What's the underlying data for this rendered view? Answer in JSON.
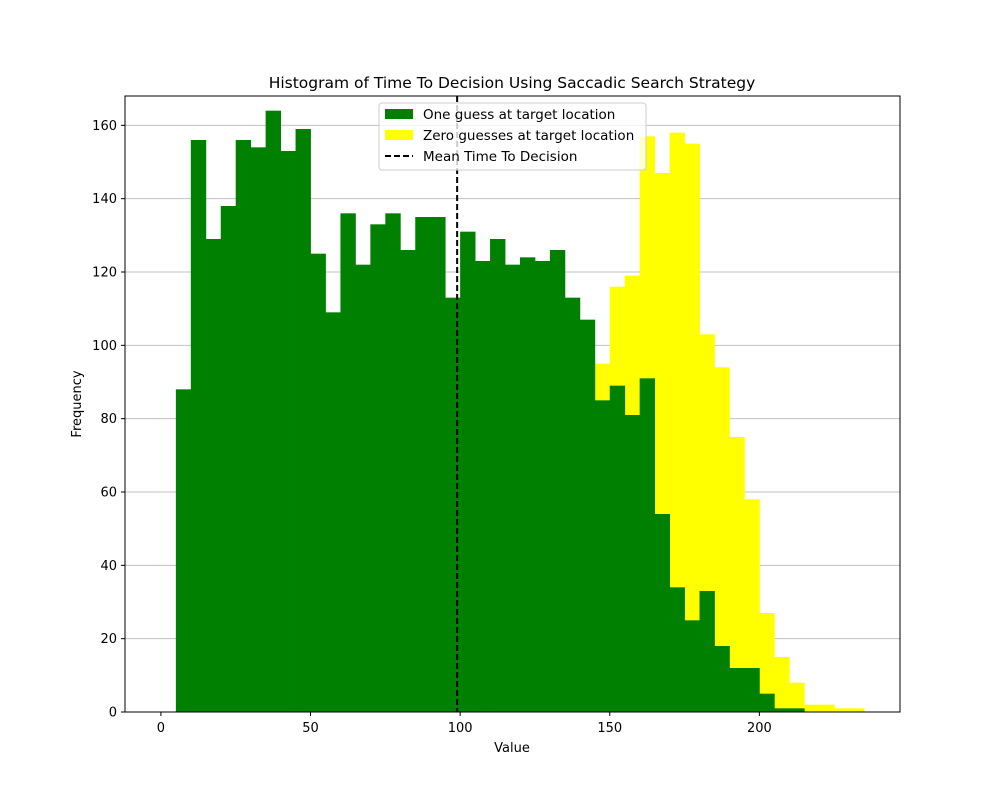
{
  "chart_data": {
    "type": "bar",
    "title": "Histogram of Time To Decision Using Saccadic Search Strategy",
    "xlabel": "Value",
    "ylabel": "Frequency",
    "xlim": [
      -12,
      247
    ],
    "ylim": [
      0,
      168
    ],
    "x_ticks": [
      0,
      50,
      100,
      150,
      200
    ],
    "y_ticks": [
      0,
      20,
      40,
      60,
      80,
      100,
      120,
      140,
      160
    ],
    "grid": "y",
    "legend_position": "top-center",
    "mean_line": {
      "label": "Mean Time To Decision",
      "x": 99,
      "style": "dashed",
      "color": "#000000"
    },
    "series": [
      {
        "name": "Zero guesses at target location",
        "color": "#ffff00",
        "bin_width": 5,
        "bin_starts": [
          145,
          150,
          155,
          160,
          165,
          170,
          175,
          180,
          185,
          190,
          195,
          200,
          205,
          210,
          215,
          220,
          225,
          230
        ],
        "values": [
          95,
          116,
          119,
          157,
          147,
          158,
          155,
          103,
          94,
          75,
          58,
          27,
          15,
          8,
          2,
          2,
          1,
          1
        ]
      },
      {
        "name": "One guess at target location",
        "color": "#008000",
        "bin_width": 5,
        "bin_starts": [
          5,
          10,
          15,
          20,
          25,
          30,
          35,
          40,
          45,
          50,
          55,
          60,
          65,
          70,
          75,
          80,
          85,
          90,
          95,
          100,
          105,
          110,
          115,
          120,
          125,
          130,
          135,
          140,
          145,
          150,
          155,
          160,
          165,
          170,
          175,
          180,
          185,
          190,
          195,
          200,
          205,
          210
        ],
        "values": [
          88,
          156,
          129,
          138,
          156,
          154,
          164,
          153,
          159,
          125,
          109,
          136,
          122,
          133,
          136,
          126,
          135,
          135,
          113,
          131,
          123,
          129,
          122,
          124,
          123,
          126,
          113,
          107,
          85,
          89,
          81,
          91,
          54,
          34,
          25,
          33,
          18,
          12,
          12,
          5,
          1,
          1
        ]
      }
    ]
  }
}
